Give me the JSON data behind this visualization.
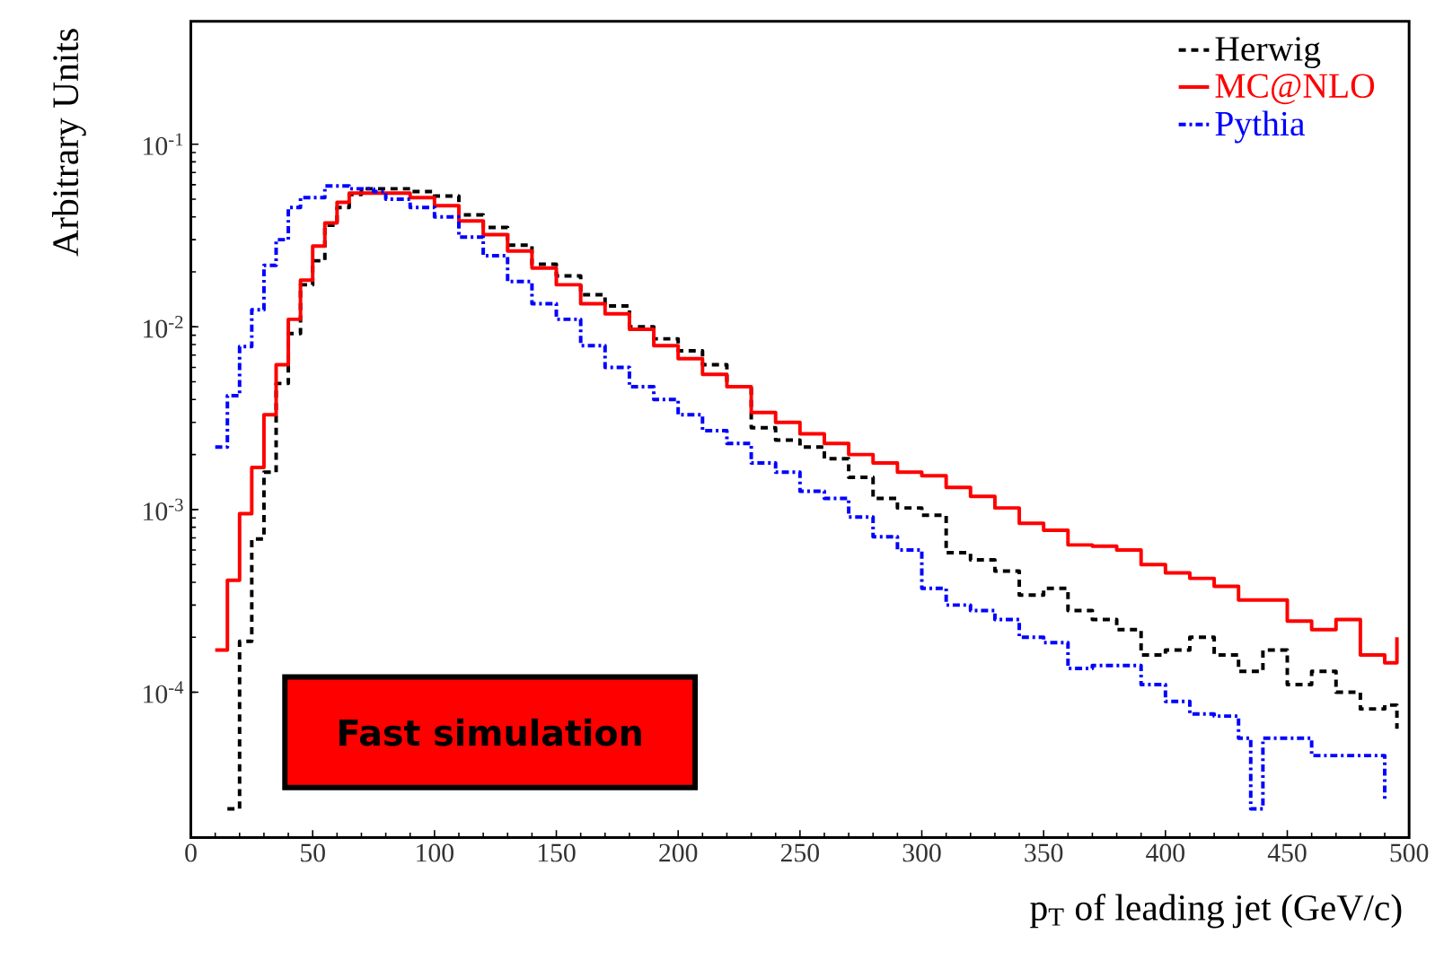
{
  "chart_data": {
    "type": "step",
    "xlabel": "p$_{T}$ of leading jet (GeV/c)",
    "ylabel": "Arbitrary Units",
    "xlim": [
      0,
      500
    ],
    "xticks": [
      0,
      50,
      100,
      150,
      200,
      250,
      300,
      350,
      400,
      450,
      500
    ],
    "ylim": [
      1.6e-05,
      0.47
    ],
    "log": "y",
    "yticks": [
      {
        "value": 0.0001,
        "label": "10$^{-4}$"
      },
      {
        "value": 0.001,
        "label": "10$^{-3}$"
      },
      {
        "value": 0.01,
        "label": "10$^{-2}$"
      },
      {
        "value": 0.1,
        "label": "10$^{-1}$"
      }
    ],
    "legend": "top right",
    "grid": false,
    "annotations": [
      "Fast simulation"
    ],
    "series": [
      {
        "name": "Herwig",
        "color": "#000000",
        "line_style": "dashed",
        "x": [
          15,
          20,
          25,
          30,
          35,
          40,
          45,
          50,
          55,
          60,
          65,
          70,
          80,
          90,
          100,
          110,
          120,
          130,
          140,
          150,
          160,
          170,
          180,
          190,
          200,
          210,
          220,
          230,
          240,
          250,
          260,
          270,
          280,
          290,
          300,
          310,
          320,
          330,
          340,
          350,
          360,
          370,
          380,
          390,
          400,
          410,
          420,
          430,
          440,
          450,
          460,
          470,
          480,
          490,
          495
        ],
        "values": [
          2.3e-05,
          0.00019,
          0.00069,
          0.0016,
          0.0049,
          0.0092,
          0.017,
          0.023,
          0.036,
          0.045,
          0.053,
          0.057,
          0.057,
          0.055,
          0.052,
          0.041,
          0.035,
          0.028,
          0.022,
          0.019,
          0.015,
          0.013,
          0.01,
          0.0086,
          0.0074,
          0.0062,
          0.0047,
          0.0028,
          0.0024,
          0.0022,
          0.0019,
          0.0015,
          0.00115,
          0.00102,
          0.00093,
          0.00058,
          0.00053,
          0.00046,
          0.00034,
          0.00037,
          0.00028,
          0.00025,
          0.00022,
          0.00016,
          0.00017,
          0.0002,
          0.00016,
          0.00013,
          0.00017,
          0.00011,
          0.00013,
          0.0001,
          8.1e-05,
          8.5e-05,
          6.3e-05
        ]
      },
      {
        "name": "MC@NLO",
        "color": "#ff0000",
        "line_style": "solid",
        "x": [
          10,
          15,
          20,
          25,
          30,
          35,
          40,
          45,
          50,
          55,
          60,
          65,
          80,
          90,
          100,
          110,
          120,
          130,
          140,
          150,
          160,
          170,
          180,
          190,
          200,
          210,
          220,
          230,
          240,
          250,
          260,
          270,
          280,
          290,
          300,
          310,
          320,
          330,
          340,
          350,
          360,
          370,
          380,
          390,
          400,
          410,
          420,
          430,
          440,
          450,
          460,
          470,
          480,
          490,
          495
        ],
        "values": [
          0.00017,
          0.00041,
          0.00095,
          0.0017,
          0.0033,
          0.0062,
          0.011,
          0.018,
          0.0277,
          0.037,
          0.048,
          0.054,
          0.054,
          0.051,
          0.046,
          0.038,
          0.032,
          0.026,
          0.021,
          0.017,
          0.0134,
          0.0118,
          0.0097,
          0.0079,
          0.0067,
          0.0055,
          0.0047,
          0.0034,
          0.003,
          0.0026,
          0.0023,
          0.002,
          0.0018,
          0.0016,
          0.00153,
          0.00132,
          0.00118,
          0.00102,
          0.00084,
          0.00077,
          0.00064,
          0.00063,
          0.0006,
          0.0005,
          0.00045,
          0.00042,
          0.00038,
          0.00032,
          0.00032,
          0.000245,
          0.00022,
          0.00025,
          0.00016,
          0.000145,
          0.0002
        ]
      },
      {
        "name": "Pythia",
        "color": "#0000ff",
        "line_style": "dotted",
        "x": [
          10,
          15,
          20,
          25,
          30,
          35,
          40,
          45,
          55,
          65,
          75,
          80,
          90,
          100,
          110,
          120,
          130,
          140,
          150,
          160,
          170,
          180,
          190,
          200,
          210,
          220,
          230,
          240,
          250,
          260,
          270,
          280,
          290,
          300,
          310,
          320,
          330,
          340,
          350,
          360,
          370,
          380,
          390,
          400,
          410,
          420,
          430,
          435,
          440,
          450,
          460,
          470,
          480,
          490
        ],
        "values": [
          0.0022,
          0.0042,
          0.0078,
          0.0124,
          0.0217,
          0.03,
          0.045,
          0.051,
          0.059,
          0.057,
          0.055,
          0.05,
          0.045,
          0.04,
          0.031,
          0.0245,
          0.0177,
          0.0134,
          0.011,
          0.0079,
          0.006,
          0.0047,
          0.004,
          0.0033,
          0.0027,
          0.0023,
          0.0018,
          0.0016,
          0.00126,
          0.00115,
          0.00091,
          0.00071,
          0.0006,
          0.00037,
          0.0003,
          0.00028,
          0.00025,
          0.0002,
          0.000187,
          0.000135,
          0.00014,
          0.00014,
          0.00011,
          8.9e-05,
          7.6e-05,
          7.4e-05,
          5.6e-05,
          2.3e-05,
          5.6e-05,
          5.6e-05,
          4.5e-05,
          4.5e-05,
          4.5e-05,
          2.6e-05
        ]
      }
    ]
  }
}
